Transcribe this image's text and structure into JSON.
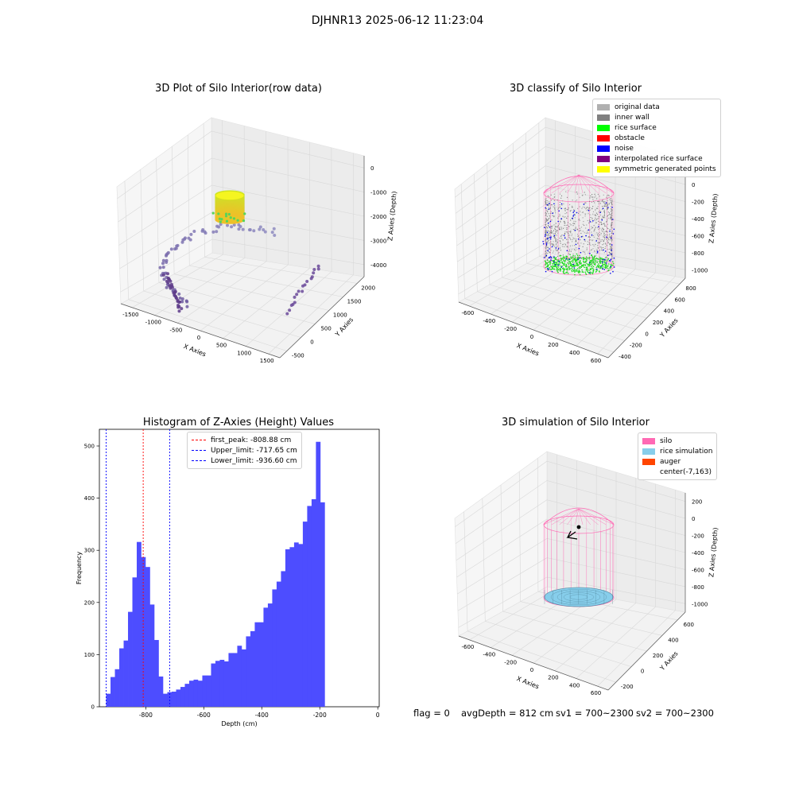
{
  "suptitle": "DJHNR13 2025-06-12 11:23:04",
  "colors": {
    "hist_bar": "#4d4dff",
    "first_peak": "#ff0000",
    "limits": "#0000ff",
    "silo": "#ff69b4",
    "rice_sim": "#87ceeb",
    "auger": "#ff4500"
  },
  "chart_data": [
    {
      "type": "scatter",
      "kind": "3d",
      "title": "3D Plot of Silo Interior(row data)",
      "xlabel": "X Axies",
      "ylabel": "Y Axies",
      "zlabel": "Z Axies (Depth)",
      "xticks": [
        "-1500",
        "-1000",
        "-500",
        "0",
        "500",
        "1000",
        "1500"
      ],
      "yticks": [
        "-500",
        "0",
        "500",
        "1000",
        "1500",
        "2000"
      ],
      "zticks": [
        "0",
        "-1000",
        "-2000",
        "-3000",
        "-4000"
      ],
      "xlim": [
        -1800,
        1600
      ],
      "ylim": [
        -600,
        2200
      ],
      "zlim": [
        -4500,
        0
      ],
      "grid": true
    },
    {
      "type": "scatter",
      "kind": "3d",
      "title": "3D classify of Silo Interior",
      "xlabel": "X Axies",
      "ylabel": "Y Axies",
      "zlabel": "Z Axies (Depth)",
      "xticks": [
        "-600",
        "-400",
        "-200",
        "0",
        "200",
        "400",
        "600"
      ],
      "yticks": [
        "-400",
        "-200",
        "0",
        "200",
        "400",
        "600",
        "800"
      ],
      "zticks": [
        "200",
        "0",
        "-200",
        "-400",
        "-600",
        "-800",
        "-1000"
      ],
      "legend": [
        {
          "label": "original data",
          "color": "#b0b0b0"
        },
        {
          "label": "inner wall",
          "color": "#808080"
        },
        {
          "label": "rice surface",
          "color": "#00ff00"
        },
        {
          "label": "obstacle",
          "color": "#ff0000"
        },
        {
          "label": "noise",
          "color": "#0000ff"
        },
        {
          "label": "interpolated rice surface",
          "color": "#800080"
        },
        {
          "label": "symmetric generated points",
          "color": "#ffff00"
        }
      ],
      "legend_position": "top-right",
      "grid": true
    },
    {
      "type": "bar",
      "title": "Histogram of Z-Axies (Height) Values",
      "xlabel": "Depth (cm)",
      "ylabel": "Frequency",
      "xlim": [
        -960,
        5
      ],
      "ylim": [
        0,
        532
      ],
      "xticks": [
        -800,
        -600,
        -400,
        -200,
        0
      ],
      "yticks": [
        0,
        100,
        200,
        300,
        400,
        500
      ],
      "bin_start": -936.6,
      "bin_width": 15.07,
      "values": [
        25,
        57,
        72,
        112,
        127,
        182,
        248,
        316,
        287,
        268,
        196,
        128,
        58,
        25,
        28,
        29,
        33,
        38,
        44,
        50,
        52,
        50,
        60,
        60,
        83,
        88,
        90,
        87,
        103,
        103,
        117,
        110,
        135,
        145,
        162,
        162,
        190,
        198,
        225,
        240,
        260,
        302,
        306,
        315,
        312,
        355,
        385,
        398,
        508,
        392
      ],
      "vlines": [
        {
          "label": "first_peak: -808.88 cm",
          "x": -808.88,
          "color": "#ff0000"
        },
        {
          "label": "Upper_limit: -717.65 cm",
          "x": -717.65,
          "color": "#0000ff"
        },
        {
          "label": "Lower_limit: -936.60 cm",
          "x": -936.6,
          "color": "#0000ff"
        }
      ],
      "legend_position": "top-center",
      "grid": false
    },
    {
      "type": "scatter",
      "kind": "3d",
      "title": "3D simulation of Silo Interior",
      "xlabel": "X Axies",
      "ylabel": "Y Axies",
      "zlabel": "Z Axies (Depth)",
      "xticks": [
        "-600",
        "-400",
        "-200",
        "0",
        "200",
        "400",
        "600"
      ],
      "yticks": [
        "-200",
        "0",
        "200",
        "400",
        "600"
      ],
      "zticks": [
        "200",
        "0",
        "-200",
        "-400",
        "-600",
        "-800",
        "-1000"
      ],
      "legend": [
        {
          "label": "silo",
          "color": "#ff69b4"
        },
        {
          "label": "rice simulation",
          "color": "#87ceeb"
        },
        {
          "label": "auger",
          "color": "#ff4500"
        },
        {
          "label": "center(-7,163)",
          "color": ""
        }
      ],
      "legend_position": "top-right",
      "grid": true
    }
  ],
  "footer": {
    "flag": "flag = 0",
    "avgDepth": "avgDepth = 812 cm",
    "sv1": "sv1 = 700~2300",
    "sv2": "sv2 = 700~2300"
  }
}
